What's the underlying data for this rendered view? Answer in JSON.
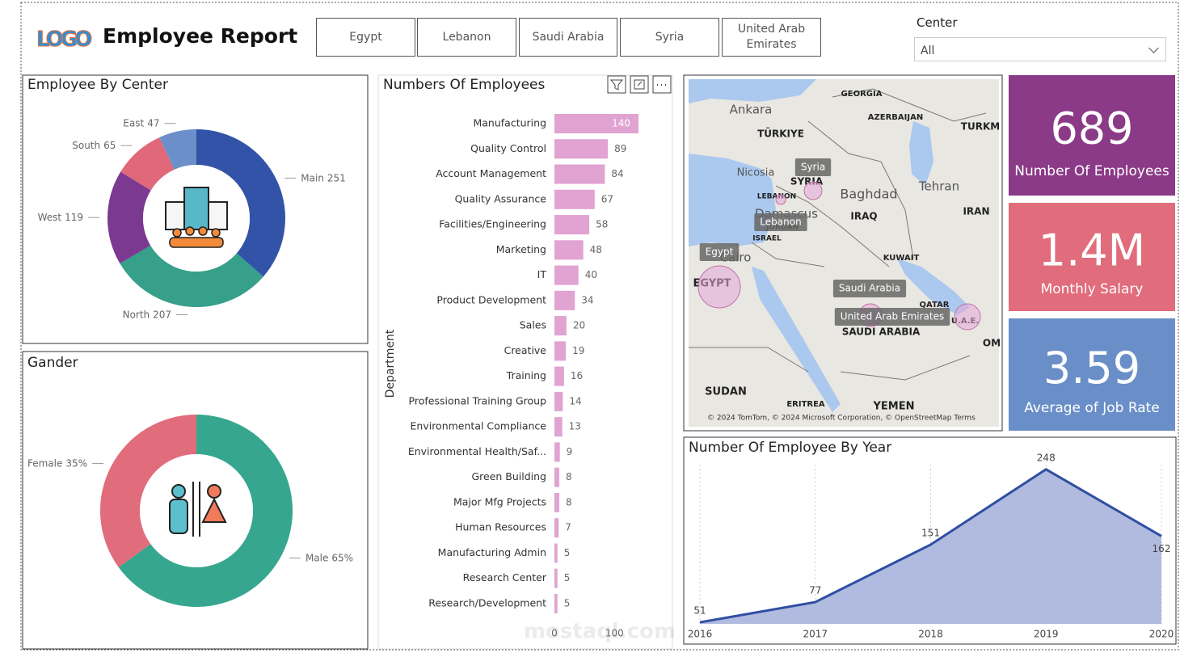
{
  "header": {
    "logo": "LOGO",
    "title": "Employee Report"
  },
  "filters": {
    "buttons": [
      "Egypt",
      "Lebanon",
      "Saudi Arabia",
      "Syria",
      "United Arab Emirates"
    ],
    "slicer_label": "Center",
    "slicer_value": "All"
  },
  "cards": [
    {
      "value": 689,
      "label": "Number Of Employees",
      "color": "#8b3a87"
    },
    {
      "value": "1.4M",
      "label": "Monthly Salary",
      "color": "#e06c7c"
    },
    {
      "value": 3.59,
      "label": "Average of Job Rate",
      "color": "#6a8fc8"
    }
  ],
  "map": {
    "labels": [
      "Ankara",
      "TÜRKIYE",
      "GEORGIA",
      "AZERBAIJAN",
      "TURKM",
      "Nicosia",
      "SYRIA",
      "LEBANON",
      "Baghdad",
      "Tehran",
      "IRAQ",
      "IRAN",
      "Damascus",
      "JORDAN",
      "ISRAEL",
      "Cairo",
      "KUWAIT",
      "EGYPT",
      "QATAR",
      "U.A.E.",
      "SAUDI ARABIA",
      "OM",
      "SUDAN",
      "ERITREA",
      "YEMEN"
    ],
    "bubbles": [
      "Syria",
      "Lebanon",
      "Egypt",
      "Saudi Arabia",
      "United Arab Emirates"
    ],
    "attribution": "© 2024 TomTom, © 2024 Microsoft Corporation, © OpenStreetMap  Terms"
  },
  "watermark": "mostaql.com",
  "chart_data": [
    {
      "type": "donut",
      "title": "Employee By Center",
      "categories": [
        "Main",
        "North",
        "West",
        "South",
        "East"
      ],
      "values": [
        251,
        207,
        119,
        65,
        47
      ],
      "colors": [
        "#3253a8",
        "#36a08a",
        "#7b3a8f",
        "#e0687a",
        "#6b8fc9"
      ]
    },
    {
      "type": "donut",
      "title": "Gander",
      "categories": [
        "Male",
        "Female"
      ],
      "values": [
        65,
        35
      ],
      "value_labels": [
        "65%",
        "35%"
      ],
      "colors": [
        "#36a68f",
        "#e06c7c"
      ]
    },
    {
      "type": "hbar",
      "title": "Numbers Of Employees",
      "y_label": "Department",
      "categories": [
        "Manufacturing",
        "Quality Control",
        "Account Management",
        "Quality Assurance",
        "Facilities/Engineering",
        "Marketing",
        "IT",
        "Product Development",
        "Sales",
        "Creative",
        "Training",
        "Professional Training Group",
        "Environmental Compliance",
        "Environmental Health/Saf...",
        "Green Building",
        "Major Mfg Projects",
        "Human Resources",
        "Manufacturing Admin",
        "Research Center",
        "Research/Development"
      ],
      "values": [
        140,
        89,
        84,
        67,
        58,
        48,
        40,
        34,
        20,
        19,
        16,
        14,
        13,
        9,
        8,
        8,
        7,
        5,
        5,
        5
      ],
      "color": "#e0a3d2",
      "xlim": [
        0,
        140
      ],
      "xticks": [
        0,
        100
      ]
    },
    {
      "type": "area",
      "title": "Number Of Employee By Year",
      "categories": [
        "2016",
        "2017",
        "2018",
        "2019",
        "2020"
      ],
      "values": [
        51,
        77,
        151,
        248,
        162
      ],
      "color": "#2f4fa2",
      "fill": "#a8b4dc",
      "ylim": [
        49,
        254
      ],
      "grid": true
    }
  ]
}
